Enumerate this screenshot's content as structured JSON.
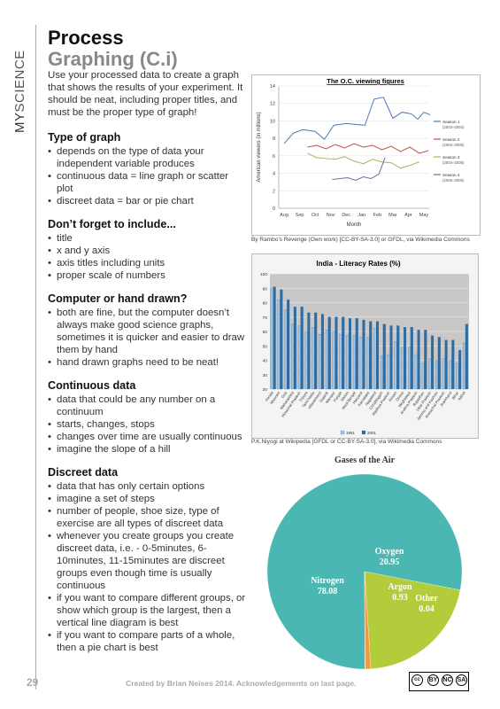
{
  "side_label": {
    "part1": "MY",
    "part2": "SCIENCE"
  },
  "title": {
    "line1": "Process",
    "line2": "Graphing (C.i)"
  },
  "intro": "Use your processed data to create a graph that shows the results of your experiment.  It should be neat, including proper titles, and must be the proper type of graph!",
  "sections": [
    {
      "heading": "Type of graph",
      "items": [
        "depends on the type of data your independent variable produces",
        "continuous data = line graph or scatter plot",
        "discreet data = bar or pie chart"
      ]
    },
    {
      "heading": "Don’t forget to include...",
      "items": [
        "title",
        "x and y axis",
        "axis titles including units",
        "proper scale of numbers"
      ]
    },
    {
      "heading": "Computer or hand drawn?",
      "items": [
        "both are fine, but the computer doesn’t always make good science graphs, sometimes it is quicker and easier to draw them by hand",
        "hand drawn graphs need to be neat!"
      ]
    },
    {
      "heading": "Continuous data",
      "items": [
        "data that could be any number on a continuum",
        "starts, changes, stops",
        "changes over time are usually continuous",
        "imagine the slope of a hill"
      ]
    },
    {
      "heading": "Discreet data",
      "items": [
        "data that has only certain options",
        "imagine a set of steps",
        "number of people, shoe size, type of exercise are all types of discreet data",
        "whenever you create groups you create discreet data, i.e. - 0-5minutes, 6-10minutes, 11-15minutes are discreet groups even though time is usually continuous",
        "if you want to compare different groups, or show which group is the largest, then a vertical line diagram is best",
        "if you want to compare parts of a whole, then a pie chart is best"
      ]
    }
  ],
  "captions": {
    "line": "By Rambo’s Revenge (Own work) [CC-BY-SA-3.0] or GFDL, via Wikimedia Commons",
    "bar": "P.K.Niyogi at Wikipedia [GFDL or CC-BY-SA-3.0], via Wikimedia Commons"
  },
  "footer": {
    "page": "29",
    "credit": "Created by Brian Neises 2014.  Acknowledgements on last page."
  },
  "license_badge": {
    "labels": [
      "BY",
      "NC",
      "SA"
    ]
  },
  "chart_data": [
    {
      "type": "line",
      "title": "The O.C. viewing figures",
      "xlabel": "Month",
      "ylabel": "American viewers (in millions)",
      "categories": [
        "Aug",
        "Sep",
        "Oct",
        "Nov",
        "Dec",
        "Jan",
        "Feb",
        "Mar",
        "Apr",
        "May"
      ],
      "ylim": [
        0,
        14
      ],
      "yticks": [
        0,
        2,
        4,
        6,
        8,
        10,
        12,
        14
      ],
      "legend_position": "right",
      "series": [
        {
          "name": "Season 1 (2003–2004)",
          "color": "#4a78b5",
          "x": [
            0,
            0.6,
            1.2,
            2,
            2.6,
            3.2,
            4,
            4.6,
            5.2,
            5.8,
            6.4,
            7,
            7.6,
            8.2,
            8.6,
            9,
            9.4
          ],
          "y": [
            7.4,
            8.6,
            9.0,
            8.8,
            7.9,
            9.5,
            9.7,
            9.6,
            9.5,
            12.5,
            12.7,
            10.3,
            11.0,
            10.8,
            10.2,
            11.0,
            10.7
          ]
        },
        {
          "name": "Season 2 (2004–2005)",
          "color": "#c0504d",
          "x": [
            1.5,
            2.1,
            2.7,
            3.3,
            3.9,
            4.5,
            5.1,
            5.7,
            6.3,
            6.9,
            7.5,
            8.1,
            8.7,
            9.3
          ],
          "y": [
            7.0,
            7.2,
            6.8,
            7.3,
            6.9,
            7.4,
            7.0,
            7.2,
            6.7,
            7.1,
            6.5,
            7.0,
            6.3,
            6.6
          ]
        },
        {
          "name": "Season 3 (2004–2005)",
          "color": "#9bbb59",
          "x": [
            1.5,
            2.1,
            2.7,
            3.3,
            3.9,
            4.5,
            5.1,
            5.7,
            6.3,
            6.9,
            7.5,
            8.1,
            8.7
          ],
          "y": [
            6.3,
            5.8,
            5.7,
            5.6,
            5.9,
            5.4,
            5.1,
            5.6,
            5.3,
            5.2,
            4.6,
            4.9,
            5.3
          ]
        },
        {
          "name": "Season 4 (2005–2006)",
          "color": "#8064a2",
          "x": [
            3.1,
            3.6,
            4.1,
            4.6,
            5.1,
            5.6,
            6.1,
            6.5
          ],
          "y": [
            3.3,
            3.4,
            3.5,
            3.2,
            3.6,
            3.4,
            3.9,
            5.8
          ]
        }
      ]
    },
    {
      "type": "bar",
      "title": "India - Literacy Rates (%)",
      "ylim": [
        20,
        100
      ],
      "yticks": [
        20,
        30,
        40,
        50,
        60,
        70,
        80,
        90,
        100
      ],
      "legend_position": "bottom",
      "categories": [
        "Kerala",
        "Mizoram",
        "Goa",
        "Maharashtra",
        "Himachal Pradesh",
        "Tripura",
        "Tamil Nadu",
        "Uttarakhand",
        "Gujarat",
        "Manipur",
        "Punjab",
        "Sikkim",
        "West Bengal",
        "Haryana",
        "Karnataka",
        "Nagaland",
        "Chhattisgarh",
        "Madhya Pradesh",
        "Assam",
        "Orissa",
        "Meghalaya",
        "Andhra Pradesh",
        "Rajasthan",
        "Uttar Pradesh",
        "Jammu and Kashmir",
        "Arunachal Pradesh",
        "Jharkhand",
        "Bihar",
        "INDIA"
      ],
      "series": [
        {
          "name": "1991",
          "color": "#9dc3e6",
          "values": [
            90,
            82,
            75,
            65,
            64,
            60,
            63,
            58,
            61,
            60,
            58,
            57,
            57,
            56,
            56,
            62,
            43,
            44,
            53,
            49,
            49,
            44,
            38,
            41,
            40,
            41,
            40,
            38,
            52
          ]
        },
        {
          "name": "2001",
          "color": "#2e6da4",
          "values": [
            91,
            89,
            82,
            77,
            77,
            73,
            73,
            72,
            70,
            70,
            70,
            69,
            69,
            68,
            67,
            67,
            65,
            64,
            64,
            63,
            63,
            61,
            61,
            57,
            56,
            54,
            54,
            47,
            65
          ]
        }
      ]
    },
    {
      "type": "pie",
      "title": "Gases of the Air",
      "slices": [
        {
          "label": "Nitrogen",
          "value": 78.08,
          "color": "#4ab7b3"
        },
        {
          "label": "Oxygen",
          "value": 20.95,
          "color": "#b3cc3c"
        },
        {
          "label": "Argon",
          "value": 0.93,
          "color": "#f59a3c"
        },
        {
          "label": "Other",
          "value": 0.04,
          "color": "#f2c24a"
        }
      ]
    }
  ]
}
